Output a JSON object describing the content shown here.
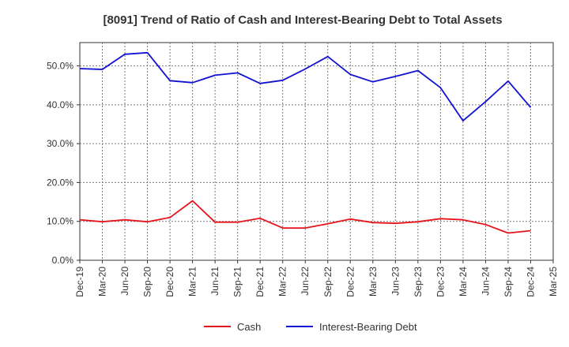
{
  "chart_data": {
    "type": "line",
    "title": "[8091]  Trend of Ratio of Cash and Interest-Bearing Debt to Total Assets",
    "xlabel": "",
    "ylabel": "",
    "categories": [
      "Dec-19",
      "Mar-20",
      "Jun-20",
      "Sep-20",
      "Dec-20",
      "Mar-21",
      "Jun-21",
      "Sep-21",
      "Dec-21",
      "Mar-22",
      "Jun-22",
      "Sep-22",
      "Dec-22",
      "Mar-23",
      "Jun-23",
      "Sep-23",
      "Dec-23",
      "Mar-24",
      "Jun-24",
      "Sep-24",
      "Dec-24",
      "Mar-25"
    ],
    "y_ticks": [
      "0.0%",
      "10.0%",
      "20.0%",
      "30.0%",
      "40.0%",
      "50.0%"
    ],
    "ylim": [
      0,
      56
    ],
    "grid": true,
    "legend_position": "bottom",
    "series": [
      {
        "name": "Cash",
        "color": "#e8141b",
        "values": [
          10.4,
          9.9,
          10.4,
          9.9,
          11.0,
          15.3,
          9.8,
          9.8,
          10.8,
          8.3,
          8.3,
          9.4,
          10.6,
          9.7,
          9.5,
          9.9,
          10.7,
          10.4,
          9.2,
          7.0,
          7.6,
          null
        ]
      },
      {
        "name": "Interest-Bearing Debt",
        "color": "#1111d4",
        "values": [
          49.3,
          49.1,
          53.0,
          53.4,
          46.2,
          45.7,
          47.6,
          48.2,
          45.5,
          46.3,
          49.2,
          52.4,
          47.8,
          45.9,
          47.3,
          48.8,
          44.4,
          35.9,
          40.8,
          46.1,
          39.3,
          null
        ]
      }
    ]
  }
}
